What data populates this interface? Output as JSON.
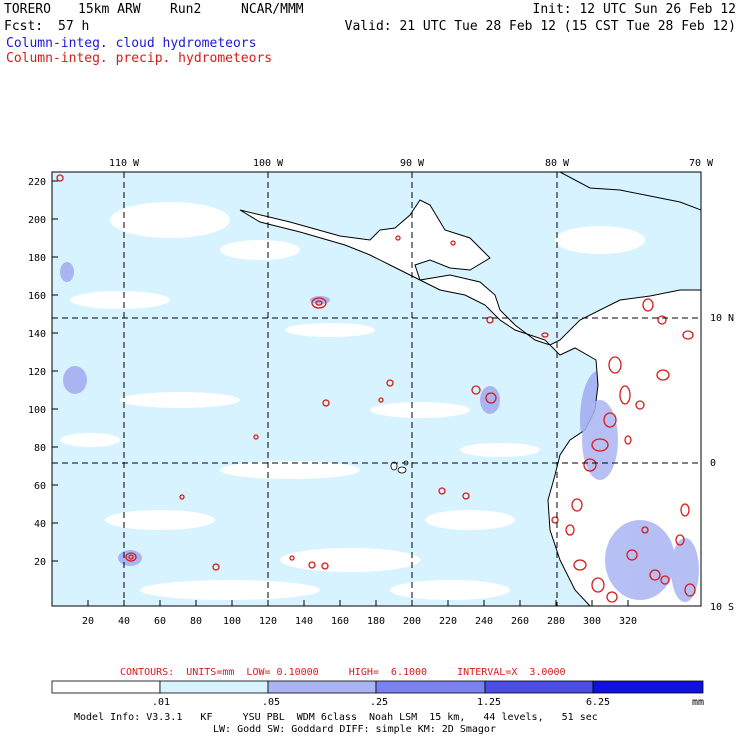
{
  "header": {
    "model": "TORERO",
    "resolution": "15km ARW",
    "run": "Run2",
    "org": "NCAR/MMM",
    "init": "Init: 12 UTC Sun 26 Feb 12",
    "fcst_label": "Fcst:",
    "fcst_value": "57 h",
    "valid": "Valid: 21 UTC Tue 28 Feb 12 (15 CST Tue 28 Feb 12)",
    "field1": "Column-integ. cloud hydrometeors",
    "field2": "Column-integ. precip. hydrometeors"
  },
  "map": {
    "lon_labels": [
      "110 W",
      "100 W",
      "90 W",
      "80 W",
      "70 W"
    ],
    "lat_labels": [
      "10 N",
      "0",
      "10 S"
    ],
    "y_ticks": [
      "220",
      "200",
      "180",
      "160",
      "140",
      "120",
      "100",
      "80",
      "60",
      "40",
      "20"
    ],
    "x_ticks": [
      "20",
      "40",
      "60",
      "80",
      "100",
      "120",
      "140",
      "160",
      "180",
      "200",
      "220",
      "240",
      "260",
      "280",
      "300",
      "320"
    ]
  },
  "contours": {
    "text": "CONTOURS:  UNITS=mm  LOW= 0.10000     HIGH=  6.1000     INTERVAL=X  3.0000"
  },
  "colorbar": {
    "labels": [
      ".01",
      ".05",
      ".25",
      "1.25",
      "6.25"
    ],
    "unit": "mm",
    "colors": [
      "#ffffff",
      "#d6f3ff",
      "#a9b5f2",
      "#7b82ee",
      "#4a4ee6",
      "#1010e0"
    ]
  },
  "footer": {
    "line1": "Model Info: V3.3.1   KF     YSU PBL  WDM 6class  Noah LSM  15 km,   44 levels,   51 sec",
    "line2": "LW: Godd SW: Goddard DIFF: simple KM: 2D Smagor"
  },
  "colors": {
    "cloud_light": "#d6f3ff",
    "cloud_mid": "#a9b5f2",
    "cloud_dark": "#7b82ee",
    "precip": "#d81a1a"
  }
}
